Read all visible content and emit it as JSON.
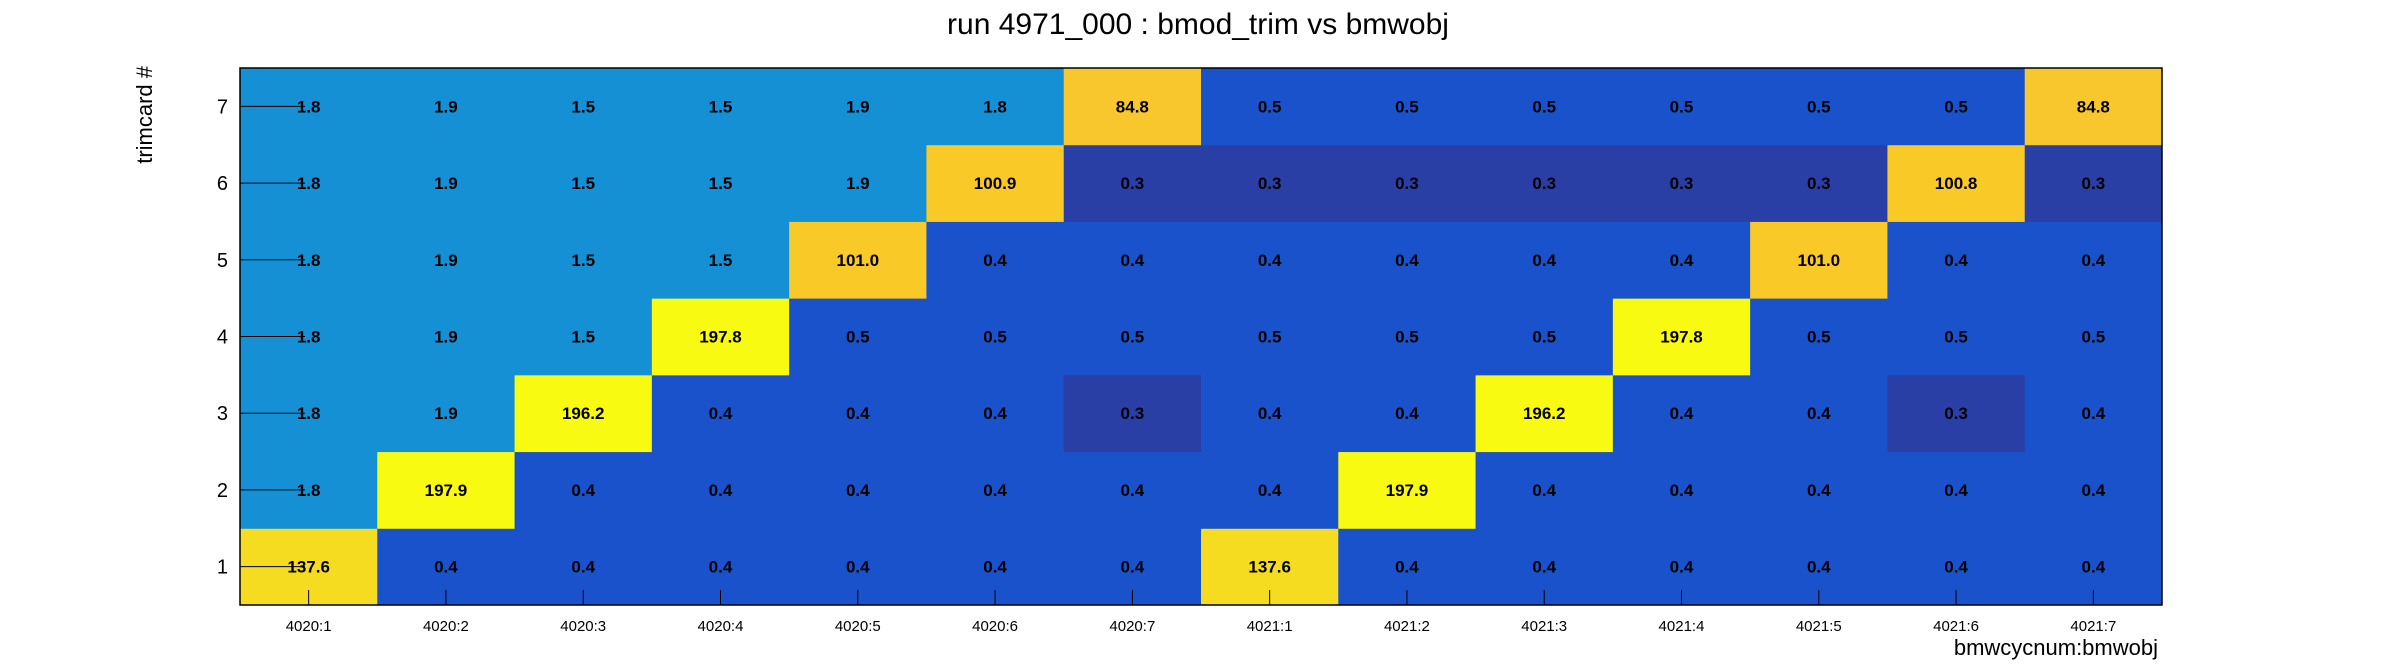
{
  "chart_data": {
    "type": "heatmap",
    "title": "run 4971_000 : bmod_trim vs bmwobj",
    "xlabel": "bmwcycnum:bmwobj",
    "ylabel": "trimcard #",
    "x_categories": [
      "4020:1",
      "4020:2",
      "4020:3",
      "4020:4",
      "4020:5",
      "4020:6",
      "4020:7",
      "4021:1",
      "4021:2",
      "4021:3",
      "4021:4",
      "4021:5",
      "4021:6",
      "4021:7"
    ],
    "y_categories": [
      "1",
      "2",
      "3",
      "4",
      "5",
      "6",
      "7"
    ],
    "values": [
      [
        "137.6",
        "0.4",
        "0.4",
        "0.4",
        "0.4",
        "0.4",
        "0.4",
        "137.6",
        "0.4",
        "0.4",
        "0.4",
        "0.4",
        "0.4",
        "0.4"
      ],
      [
        "1.8",
        "197.9",
        "0.4",
        "0.4",
        "0.4",
        "0.4",
        "0.4",
        "0.4",
        "197.9",
        "0.4",
        "0.4",
        "0.4",
        "0.4",
        "0.4"
      ],
      [
        "1.8",
        "1.9",
        "196.2",
        "0.4",
        "0.4",
        "0.4",
        "0.3",
        "0.4",
        "0.4",
        "196.2",
        "0.4",
        "0.4",
        "0.3",
        "0.4"
      ],
      [
        "1.8",
        "1.9",
        "1.5",
        "197.8",
        "0.5",
        "0.5",
        "0.5",
        "0.5",
        "0.5",
        "0.5",
        "197.8",
        "0.5",
        "0.5",
        "0.5"
      ],
      [
        "1.8",
        "1.9",
        "1.5",
        "1.5",
        "101.0",
        "0.4",
        "0.4",
        "0.4",
        "0.4",
        "0.4",
        "0.4",
        "101.0",
        "0.4",
        "0.4"
      ],
      [
        "1.8",
        "1.9",
        "1.5",
        "1.5",
        "1.9",
        "100.9",
        "0.3",
        "0.3",
        "0.3",
        "0.3",
        "0.3",
        "0.3",
        "100.8",
        "0.3"
      ],
      [
        "1.8",
        "1.9",
        "1.5",
        "1.5",
        "1.9",
        "1.8",
        "84.8",
        "0.5",
        "0.5",
        "0.5",
        "0.5",
        "0.5",
        "0.5",
        "84.8"
      ]
    ],
    "color_map": {
      "0.3": "#2a3fa5",
      "0.4": "#1a52cc",
      "0.5": "#1a52cc",
      "1.5": "#1590d4",
      "1.8": "#1590d4",
      "1.9": "#1590d4",
      "84.8": "#f8c72d",
      "100.8": "#f9c928",
      "100.9": "#f9c928",
      "101.0": "#f9c928",
      "137.6": "#f6dc20",
      "196.2": "#f9fa12",
      "197.8": "#f9fa12",
      "197.9": "#f9fa12"
    },
    "colors": {
      "grid_line": "#000000",
      "frame": "#000000"
    }
  }
}
